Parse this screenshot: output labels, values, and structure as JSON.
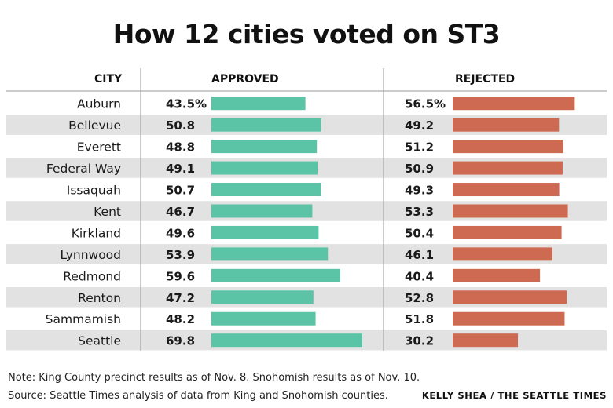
{
  "chart_data": {
    "type": "bar",
    "title": "How 12 cities voted on ST3",
    "columns": {
      "city": "CITY",
      "approved": "APPROVED",
      "rejected": "REJECTED"
    },
    "categories": [
      "Auburn",
      "Bellevue",
      "Everett",
      "Federal Way",
      "Issaquah",
      "Kent",
      "Kirkland",
      "Lynnwood",
      "Redmond",
      "Renton",
      "Sammamish",
      "Seattle"
    ],
    "series": [
      {
        "name": "APPROVED",
        "color": "#5cc4a6",
        "values": [
          43.5,
          50.8,
          48.8,
          49.1,
          50.7,
          46.7,
          49.6,
          53.9,
          59.6,
          47.2,
          48.2,
          69.8
        ],
        "labels": [
          "43.5%",
          "50.8",
          "48.8",
          "49.1",
          "50.7",
          "46.7",
          "49.6",
          "53.9",
          "59.6",
          "47.2",
          "48.2",
          "69.8"
        ]
      },
      {
        "name": "REJECTED",
        "color": "#cf6a52",
        "values": [
          56.5,
          49.2,
          51.2,
          50.9,
          49.3,
          53.3,
          50.4,
          46.1,
          40.4,
          52.8,
          51.8,
          30.2
        ],
        "labels": [
          "56.5%",
          "49.2",
          "51.2",
          "50.9",
          "49.3",
          "53.3",
          "50.4",
          "46.1",
          "40.4",
          "52.8",
          "51.8",
          "30.2"
        ]
      }
    ],
    "stripe_color": "#e2e2e2"
  },
  "footer": {
    "note": "Note: King County precinct results as of Nov. 8. Snohomish results as of Nov. 10.",
    "source": "Source: Seattle Times analysis of data from King and Snohomish counties.",
    "credit": "KELLY SHEA / THE SEATTLE TIMES"
  }
}
